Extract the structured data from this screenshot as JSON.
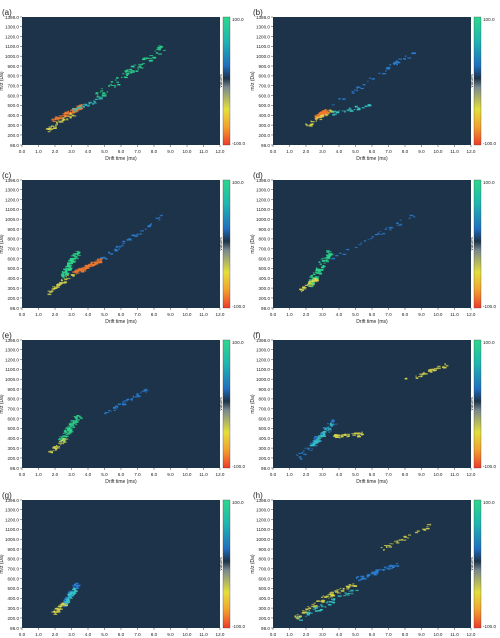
{
  "figure": {
    "x_ticks": [
      "0.0",
      "1.0",
      "2.0",
      "3.0",
      "4.0",
      "5.0",
      "6.0",
      "7.0",
      "8.0",
      "9.0",
      "10.0",
      "11.0",
      "12.0"
    ],
    "y_ticks": [
      "98.0",
      "200.0",
      "300.0",
      "400.0",
      "500.0",
      "600.0",
      "700.0",
      "800.0",
      "900.0",
      "1000.0",
      "1100.0",
      "1200.0",
      "1300.0",
      "1398.0"
    ],
    "colorbar_ticks": [
      "100.0",
      "-100.0"
    ],
    "colorbar_label": "Values",
    "colors": {
      "background": "#1d3349",
      "green": "#2dd88c",
      "blue": "#2b7fd6",
      "cyan": "#35c6c4",
      "yellow": "#d8d64a",
      "orange": "#f0792e",
      "grey": "#8aa0a8"
    }
  },
  "chart_data": [
    {
      "panel": "(a)",
      "type": "heatmap",
      "xlabel": "Drift time (ms)",
      "ylabel": "m/z (Da)",
      "xlim": [
        0,
        12
      ],
      "ylim": [
        98,
        1398
      ],
      "features": [
        {
          "color": "green",
          "from": [
            4.5,
            600
          ],
          "to": [
            8.5,
            1100
          ],
          "width": 70,
          "density": 1.0
        },
        {
          "color": "orange",
          "from": [
            1.8,
            350
          ],
          "to": [
            3.6,
            500
          ],
          "width": 40,
          "density": 1.0
        },
        {
          "color": "yellow",
          "from": [
            1.5,
            250
          ],
          "to": [
            3.0,
            420
          ],
          "width": 40,
          "density": 0.4
        },
        {
          "color": "cyan",
          "from": [
            3.0,
            450
          ],
          "to": [
            4.8,
            580
          ],
          "width": 30,
          "density": 0.3
        }
      ]
    },
    {
      "panel": "(b)",
      "type": "heatmap",
      "xlabel": "Drift time (ms)",
      "ylabel": "m/z (Da)",
      "xlim": [
        0,
        12
      ],
      "ylim": [
        98,
        1398
      ],
      "features": [
        {
          "color": "blue",
          "from": [
            3.0,
            450
          ],
          "to": [
            8.5,
            1050
          ],
          "width": 50,
          "density": 0.4
        },
        {
          "color": "orange",
          "from": [
            2.5,
            380
          ],
          "to": [
            3.2,
            450
          ],
          "width": 30,
          "density": 1.0
        },
        {
          "color": "yellow",
          "from": [
            2.0,
            300
          ],
          "to": [
            3.5,
            450
          ],
          "width": 30,
          "density": 0.3
        },
        {
          "color": "cyan",
          "from": [
            3.5,
            420
          ],
          "to": [
            6.0,
            520
          ],
          "width": 25,
          "density": 0.3
        }
      ]
    },
    {
      "panel": "(c)",
      "type": "heatmap",
      "xlabel": "Drift time (ms)",
      "ylabel": "m/z (Da)",
      "xlim": [
        0,
        12
      ],
      "ylim": [
        98,
        1398
      ],
      "features": [
        {
          "color": "green",
          "from": [
            2.4,
            420
          ],
          "to": [
            3.3,
            680
          ],
          "width": 50,
          "density": 1.0
        },
        {
          "color": "orange",
          "from": [
            3.0,
            450
          ],
          "to": [
            4.8,
            600
          ],
          "width": 35,
          "density": 1.0
        },
        {
          "color": "blue",
          "from": [
            4.8,
            600
          ],
          "to": [
            8.5,
            1050
          ],
          "width": 40,
          "density": 0.4
        },
        {
          "color": "yellow",
          "from": [
            1.5,
            250
          ],
          "to": [
            3.0,
            450
          ],
          "width": 40,
          "density": 0.4
        }
      ]
    },
    {
      "panel": "(d)",
      "type": "heatmap",
      "xlabel": "Drift time (ms)",
      "ylabel": "m/z (Da)",
      "xlim": [
        0,
        12
      ],
      "ylim": [
        98,
        1398
      ],
      "features": [
        {
          "color": "green",
          "from": [
            2.1,
            330
          ],
          "to": [
            3.4,
            680
          ],
          "width": 70,
          "density": 1.0
        },
        {
          "color": "blue",
          "from": [
            3.5,
            600
          ],
          "to": [
            8.5,
            1050
          ],
          "width": 35,
          "density": 0.3
        },
        {
          "color": "yellow",
          "from": [
            1.6,
            280
          ],
          "to": [
            2.6,
            400
          ],
          "width": 30,
          "density": 0.3
        }
      ]
    },
    {
      "panel": "(e)",
      "type": "heatmap",
      "xlabel": "Drift time (ms)",
      "ylabel": "m/z (Da)",
      "xlim": [
        0,
        12
      ],
      "ylim": [
        98,
        1398
      ],
      "features": [
        {
          "color": "green",
          "from": [
            2.3,
            380
          ],
          "to": [
            3.4,
            640
          ],
          "width": 60,
          "density": 1.0
        },
        {
          "color": "blue",
          "from": [
            5.0,
            650
          ],
          "to": [
            7.5,
            900
          ],
          "width": 35,
          "density": 0.4
        },
        {
          "color": "yellow",
          "from": [
            1.6,
            250
          ],
          "to": [
            2.6,
            400
          ],
          "width": 30,
          "density": 0.3
        }
      ]
    },
    {
      "panel": "(f)",
      "type": "heatmap",
      "xlabel": "Drift time (ms)",
      "ylabel": "m/z (Da)",
      "xlim": [
        0,
        12
      ],
      "ylim": [
        98,
        1398
      ],
      "features": [
        {
          "color": "blue",
          "from": [
            1.5,
            200
          ],
          "to": [
            3.8,
            600
          ],
          "width": 70,
          "density": 0.6
        },
        {
          "color": "cyan",
          "from": [
            2.2,
            300
          ],
          "to": [
            3.5,
            550
          ],
          "width": 40,
          "density": 0.5
        },
        {
          "color": "yellow",
          "from": [
            3.5,
            420
          ],
          "to": [
            5.5,
            450
          ],
          "width": 30,
          "density": 0.4
        },
        {
          "color": "yellow",
          "from": [
            8.0,
            1000
          ],
          "to": [
            10.5,
            1150
          ],
          "width": 25,
          "density": 0.3
        }
      ]
    },
    {
      "panel": "(g)",
      "type": "heatmap",
      "xlabel": "Drift time (ms)",
      "ylabel": "m/z (Da)",
      "xlim": [
        0,
        12
      ],
      "ylim": [
        98,
        1398
      ],
      "features": [
        {
          "color": "blue",
          "from": [
            2.4,
            330
          ],
          "to": [
            3.3,
            560
          ],
          "width": 45,
          "density": 0.6
        },
        {
          "color": "cyan",
          "from": [
            2.5,
            350
          ],
          "to": [
            3.2,
            500
          ],
          "width": 30,
          "density": 0.5
        },
        {
          "color": "yellow",
          "from": [
            1.8,
            250
          ],
          "to": [
            2.5,
            350
          ],
          "width": 25,
          "density": 0.3
        }
      ]
    },
    {
      "panel": "(h)",
      "type": "heatmap",
      "xlabel": "Drift time (ms)",
      "ylabel": "m/z (Da)",
      "xlim": [
        0,
        12
      ],
      "ylim": [
        98,
        1398
      ],
      "features": [
        {
          "color": "blue",
          "from": [
            5.0,
            600
          ],
          "to": [
            7.5,
            750
          ],
          "width": 35,
          "density": 0.6
        },
        {
          "color": "yellow",
          "from": [
            1.2,
            200
          ],
          "to": [
            3.5,
            450
          ],
          "width": 50,
          "density": 0.5
        },
        {
          "color": "yellow",
          "from": [
            3.0,
            420
          ],
          "to": [
            5.0,
            550
          ],
          "width": 30,
          "density": 0.3
        },
        {
          "color": "cyan",
          "from": [
            1.5,
            200
          ],
          "to": [
            5.0,
            500
          ],
          "width": 45,
          "density": 0.5
        },
        {
          "color": "yellow",
          "from": [
            6.5,
            900
          ],
          "to": [
            9.5,
            1150
          ],
          "width": 25,
          "density": 0.3
        }
      ]
    }
  ]
}
